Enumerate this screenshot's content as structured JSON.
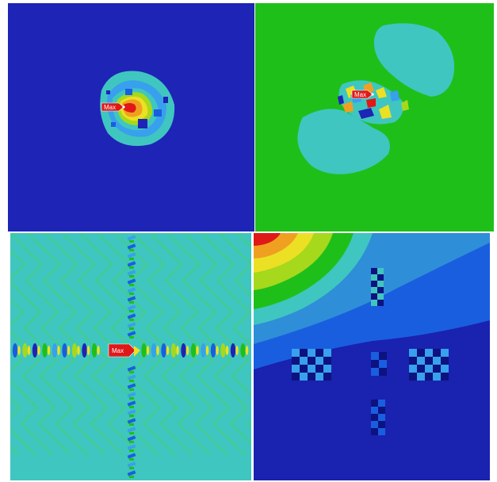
{
  "panels": [
    {
      "id": "p1",
      "max_label": "Max"
    },
    {
      "id": "p2",
      "max_label": "Max"
    },
    {
      "id": "p3",
      "max_label": "Max"
    },
    {
      "id": "p4"
    }
  ],
  "colors": {
    "deep_blue": "#1e24b6",
    "blue": "#1a5ee0",
    "light_blue": "#38a0ec",
    "cyan": "#3fc6c0",
    "green": "#1fbf1a",
    "yellow_green": "#a6d81c",
    "yellow": "#ece024",
    "orange": "#f0a020",
    "red": "#e01818"
  }
}
